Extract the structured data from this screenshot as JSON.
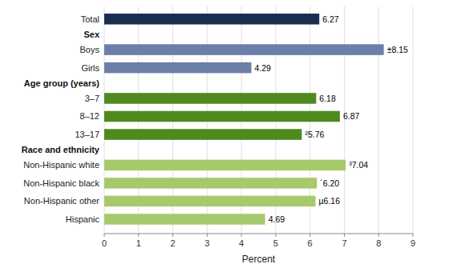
{
  "chart_data": {
    "type": "bar",
    "orientation": "horizontal",
    "categories": [
      "Total",
      "Boys",
      "Girls",
      "3–7",
      "8–12",
      "13–17",
      "Non-Hispanic white",
      "Non-Hispanic black",
      "Non-Hispanic other",
      "Hispanic"
    ],
    "values": [
      6.27,
      8.15,
      4.29,
      6.18,
      6.87,
      5.76,
      7.04,
      6.2,
      6.16,
      4.69
    ],
    "value_labels": [
      "6.27",
      "±8.15",
      "4.29",
      "6.18",
      "6.87",
      "²5.76",
      "³7.04",
      "´6.20",
      "µ6.16",
      "4.69"
    ],
    "colors": [
      "#1a2e52",
      "#6b7fa8",
      "#6b7fa8",
      "#4e8a1e",
      "#4e8a1e",
      "#4e8a1e",
      "#a8c96b",
      "#a8c96b",
      "#a8c96b",
      "#a8c96b"
    ],
    "data_labels": true,
    "annotations": [
      {
        "text": "Sex",
        "before": "Boys"
      },
      {
        "text": "Age group (years)",
        "before": "3–7"
      },
      {
        "text": "Race and ethnicity",
        "before": "Non-Hispanic white"
      }
    ],
    "xlabel": "Percent",
    "xlim": [
      0,
      9
    ],
    "xticks": [
      0,
      1,
      2,
      3,
      4,
      5,
      6,
      7,
      8,
      9
    ],
    "grid": true
  }
}
